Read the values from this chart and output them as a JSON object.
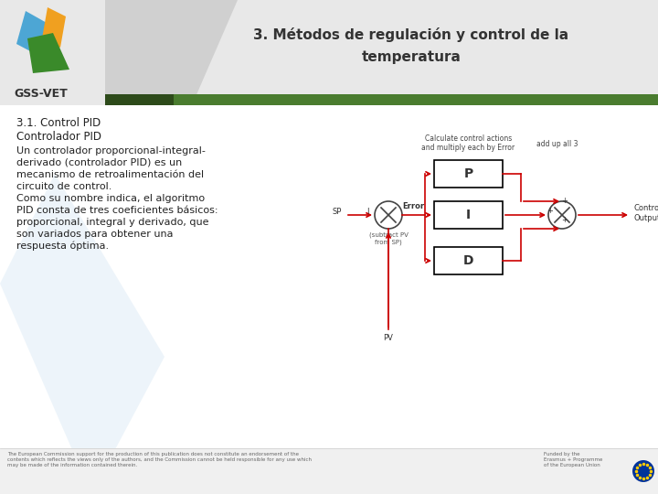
{
  "title_line1": "3. Métodos de regulación y control de la",
  "title_line2": "temperatura",
  "section_title": "3.1. Control PID",
  "section_subtitle": "Controlador PID",
  "body_lines": [
    "Un controlador proporcional-integral-",
    "derivado (controlador PID) es un",
    "mecanismo de retroalimentación del",
    "circuito de control.",
    "Como su nombre indica, el algoritmo",
    "PID consta de tres coeficientes básicos:",
    "proporcional, integral y derivado, que",
    "son variados para obtener una",
    "respuesta óptima."
  ],
  "footer_left": "The European Commission support for the production of this publication does not constitute an endorsement of the\ncontents which reflects the views only of the authors, and the Commission cannot be held responsible for any use which\nmay be made of the information contained therein.",
  "footer_right": "Funded by the\nErasmus + Programme\nof the European Union",
  "header_bg": "#e8e8e8",
  "content_bg": "#ffffff",
  "footer_bg": "#f0f0f0",
  "green_bar_color": "#4a7c2f",
  "dark_bar_color": "#2d4a1a",
  "title_color": "#333333",
  "text_color": "#222222",
  "red_color": "#cc0000",
  "diagram_note1": "Calculate control actions",
  "diagram_note1b": "and multiply each by Error",
  "diagram_note2": "add up all 3",
  "diagram_sp": "SP",
  "diagram_pv": "PV",
  "diagram_error": "Error",
  "diagram_subtract": "(subtract PV\nfrom SP)",
  "diagram_output": "Controller\nOutput",
  "gss_vet_text": "GSS-VET",
  "logo_blue": "#4da6d4",
  "logo_orange": "#f0a020",
  "logo_green": "#3a8a2a"
}
